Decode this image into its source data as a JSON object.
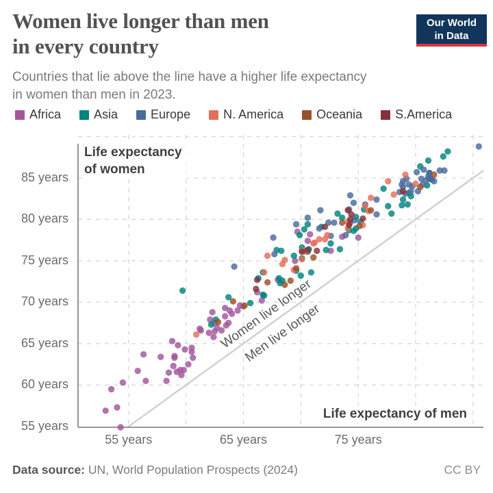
{
  "header": {
    "title_line1": "Women live longer than men",
    "title_line2": "in every country",
    "logo_line1": "Our World",
    "logo_line2": "in Data"
  },
  "subtitle": {
    "line1": "Countries that lie above the line have a higher life expectancy",
    "line2": "in women than men in 2023."
  },
  "legend": {
    "items": [
      {
        "label": "Africa",
        "color": "#a2559c"
      },
      {
        "label": "Asia",
        "color": "#00847e"
      },
      {
        "label": "Europe",
        "color": "#4c6a9c"
      },
      {
        "label": "N. America",
        "color": "#e56e5a"
      },
      {
        "label": "Oceania",
        "color": "#9a5129"
      },
      {
        "label": "S.America",
        "color": "#883039"
      }
    ]
  },
  "colors": {
    "gridline": "#d9d9d9",
    "axis": "#777777",
    "diagonal": "#d2d2d2",
    "logo_navy": "#12355b",
    "logo_red": "#d8353f"
  },
  "chart_data": {
    "type": "scatter",
    "title": "Women live longer than men in every country",
    "xlabel": "Life expectancy of men",
    "ylabel": "Life expectancy of women",
    "ylabel_lines": [
      "Life expectancy",
      "of women"
    ],
    "tick_suffix": " years",
    "xlim": [
      50.6,
      85.9
    ],
    "ylim": [
      54.9,
      90.2
    ],
    "x_tick_labels": [
      55,
      65,
      75
    ],
    "y_tick_labels": [
      55,
      60,
      65,
      70,
      75,
      80,
      85
    ],
    "x_gridlines": [
      55,
      60,
      65,
      70,
      75,
      80,
      85
    ],
    "y_gridlines": [
      60,
      65,
      70,
      75,
      80,
      85,
      90
    ],
    "grid": true,
    "legend_position": "top",
    "diagonal_labels": {
      "above": "Women live longer",
      "below": "Men live longer"
    },
    "diagonal": "y = x parity line",
    "series": [
      {
        "name": "Africa",
        "color": "#a2559c",
        "points": [
          [
            75.0,
            77.8
          ],
          [
            68.0,
            72.7
          ],
          [
            69.5,
            75.0
          ],
          [
            73.6,
            77.9
          ],
          [
            72.6,
            76.2
          ],
          [
            63.4,
            68.3
          ],
          [
            54.0,
            57.3
          ],
          [
            63.8,
            69.0
          ],
          [
            64.0,
            68.6
          ],
          [
            62.5,
            66.5
          ],
          [
            56.5,
            60.5
          ],
          [
            61.3,
            66.6
          ],
          [
            62.5,
            67.5
          ],
          [
            64.5,
            69.0
          ],
          [
            65.0,
            69.5
          ],
          [
            60.5,
            64.5
          ],
          [
            59.0,
            63.5
          ],
          [
            62.0,
            66.3
          ],
          [
            60.5,
            64.0
          ],
          [
            54.5,
            60.3
          ],
          [
            53.0,
            56.9
          ],
          [
            59.8,
            61.8
          ],
          [
            54.3,
            54.9
          ],
          [
            59.2,
            61.6
          ],
          [
            60.6,
            63.3
          ],
          [
            62.4,
            65.8
          ],
          [
            58.5,
            61.5
          ],
          [
            60.2,
            62.5
          ],
          [
            59.5,
            61.8
          ],
          [
            58.3,
            60.5
          ],
          [
            59.0,
            63.3
          ],
          [
            66.6,
            70.2
          ],
          [
            63.5,
            67.2
          ],
          [
            59.6,
            61.2
          ],
          [
            58.9,
            62.3
          ],
          [
            63.7,
            67.5
          ],
          [
            70.8,
            78.2
          ],
          [
            59.9,
            64.3
          ],
          [
            64.7,
            69.6
          ],
          [
            66.2,
            71.2
          ],
          [
            59.3,
            64.8
          ],
          [
            61.2,
            66.8
          ],
          [
            57.8,
            63.4
          ],
          [
            62.1,
            67.9
          ],
          [
            55.8,
            61.7
          ],
          [
            63.1,
            66.6
          ],
          [
            62.7,
            66.9
          ],
          [
            70.6,
            77.4
          ],
          [
            69.7,
            78.5
          ],
          [
            63.4,
            69.3
          ],
          [
            58.8,
            65.3
          ],
          [
            62.3,
            68.8
          ],
          [
            56.3,
            63.7
          ],
          [
            53.5,
            59.5
          ]
        ]
      },
      {
        "name": "Asia",
        "color": "#00847e",
        "points": [
          [
            62.2,
            67.3
          ],
          [
            65.6,
            69.9
          ],
          [
            70.0,
            73.2
          ],
          [
            72.2,
            76.3
          ],
          [
            73.6,
            80.2
          ],
          [
            68.4,
            72.6
          ],
          [
            70.9,
            73.6
          ],
          [
            78.8,
            81.7
          ],
          [
            59.7,
            71.4
          ],
          [
            63.7,
            70.6
          ],
          [
            73.2,
            80.7
          ],
          [
            66.8,
            70.8
          ],
          [
            68.1,
            72.9
          ],
          [
            70.6,
            79.4
          ],
          [
            74.2,
            78.7
          ],
          [
            81.2,
            85.6
          ],
          [
            68.2,
            72.3
          ],
          [
            66.3,
            72.9
          ],
          [
            73.4,
            76.4
          ],
          [
            66.7,
            70.9
          ],
          [
            75.5,
            81.2
          ],
          [
            67.9,
            76.3
          ],
          [
            70.1,
            76.6
          ],
          [
            80.4,
            86.4
          ],
          [
            81.1,
            87.1
          ],
          [
            77.2,
            83.7
          ],
          [
            82.8,
            88.2
          ],
          [
            82.4,
            87.6
          ],
          [
            70.3,
            78.8
          ],
          [
            70.1,
            75.3
          ],
          [
            66.7,
            73.6
          ],
          [
            68.3,
            76.2
          ],
          [
            69.6,
            73.8
          ],
          [
            74.6,
            78.6
          ],
          [
            69.4,
            75.6
          ],
          [
            70.7,
            76.4
          ],
          [
            75.2,
            79.7
          ],
          [
            74.8,
            78.9
          ],
          [
            81.2,
            84.9
          ],
          [
            72.6,
            77.1
          ],
          [
            77.9,
            80.7
          ],
          [
            62.6,
            67.9
          ],
          [
            77.6,
            81.6
          ],
          [
            79.6,
            82.8
          ],
          [
            81.0,
            84.1
          ],
          [
            79.3,
            81.8
          ],
          [
            78.9,
            82.4
          ],
          [
            74.8,
            80.3
          ],
          [
            69.9,
            78.1
          ],
          [
            71.8,
            79.1
          ],
          [
            70.6,
            76.1
          ],
          [
            79.4,
            83.2
          ]
        ]
      },
      {
        "name": "Europe",
        "color": "#4c6a9c",
        "points": [
          [
            81.6,
            84.6
          ],
          [
            81.4,
            84.8
          ],
          [
            81.3,
            84.9
          ],
          [
            79.6,
            83.4
          ],
          [
            78.8,
            84.2
          ],
          [
            79.1,
            83.1
          ],
          [
            80.6,
            84.2
          ],
          [
            80.2,
            83.4
          ],
          [
            79.7,
            84.0
          ],
          [
            80.5,
            84.9
          ],
          [
            80.1,
            85.7
          ],
          [
            78.6,
            83.3
          ],
          [
            82.1,
            85.9
          ],
          [
            79.4,
            84.2
          ],
          [
            79.2,
            84.9
          ],
          [
            80.7,
            86.0
          ],
          [
            81.2,
            85.6
          ],
          [
            80.9,
            84.7
          ],
          [
            78.9,
            83.9
          ],
          [
            78.9,
            84.6
          ],
          [
            75.6,
            81.8
          ],
          [
            74.7,
            79.9
          ],
          [
            72.6,
            78.0
          ],
          [
            74.3,
            79.6
          ],
          [
            73.9,
            78.1
          ],
          [
            76.6,
            80.6
          ],
          [
            71.6,
            78.9
          ],
          [
            72.4,
            79.6
          ],
          [
            72.9,
            79.6
          ],
          [
            74.2,
            81.2
          ],
          [
            76.6,
            82.4
          ],
          [
            74.6,
            82.0
          ],
          [
            71.7,
            81.1
          ],
          [
            70.6,
            80.2
          ],
          [
            74.3,
            82.9
          ],
          [
            69.6,
            79.4
          ],
          [
            67.7,
            75.8
          ],
          [
            64.2,
            74.3
          ],
          [
            67.6,
            77.8
          ],
          [
            85.5,
            88.8
          ],
          [
            82.5,
            85.9
          ],
          [
            81.1,
            85.2
          ]
        ]
      },
      {
        "name": "N. America",
        "color": "#e56e5a",
        "points": [
          [
            80.0,
            84.3
          ],
          [
            75.9,
            81.0
          ],
          [
            72.3,
            78.1
          ],
          [
            66.8,
            73.6
          ],
          [
            71.2,
            77.2
          ],
          [
            70.1,
            75.2
          ],
          [
            67.1,
            75.6
          ],
          [
            71.6,
            77.6
          ],
          [
            78.1,
            83.0
          ],
          [
            75.6,
            81.6
          ],
          [
            74.1,
            79.7
          ],
          [
            60.9,
            66.1
          ],
          [
            71.1,
            77.1
          ],
          [
            69.4,
            73.9
          ],
          [
            70.1,
            76.2
          ],
          [
            72.1,
            77.6
          ],
          [
            74.1,
            78.9
          ],
          [
            70.4,
            76.1
          ],
          [
            68.6,
            75.1
          ],
          [
            68.4,
            74.6
          ],
          [
            75.4,
            79.3
          ],
          [
            77.6,
            84.6
          ],
          [
            79.1,
            85.4
          ],
          [
            76.1,
            82.6
          ]
        ]
      },
      {
        "name": "Oceania",
        "color": "#9a5129",
        "points": [
          [
            81.6,
            85.4
          ],
          [
            80.4,
            83.9
          ],
          [
            62.8,
            67.6
          ],
          [
            65.1,
            69.6
          ],
          [
            68.6,
            72.1
          ],
          [
            69.1,
            72.6
          ],
          [
            71.1,
            75.4
          ],
          [
            69.6,
            74.1
          ],
          [
            64.1,
            70.1
          ],
          [
            67.1,
            72.4
          ],
          [
            73.6,
            79.6
          ],
          [
            75.1,
            79.2
          ],
          [
            76.1,
            81.1
          ]
        ]
      },
      {
        "name": "S.America",
        "color": "#883039",
        "points": [
          [
            72.1,
            79.1
          ],
          [
            74.4,
            80.6
          ],
          [
            78.9,
            83.4
          ],
          [
            74.1,
            81.1
          ],
          [
            71.4,
            76.2
          ],
          [
            66.1,
            71.6
          ],
          [
            74.2,
            79.3
          ],
          [
            75.4,
            80.1
          ],
          [
            74.3,
            80.0
          ],
          [
            70.1,
            76.1
          ],
          [
            66.2,
            72.7
          ],
          [
            70.6,
            76.3
          ]
        ]
      }
    ]
  },
  "footer": {
    "source_label": "Data source:",
    "source_text": "UN, World Population Prospects (2024)",
    "license": "CC BY"
  }
}
